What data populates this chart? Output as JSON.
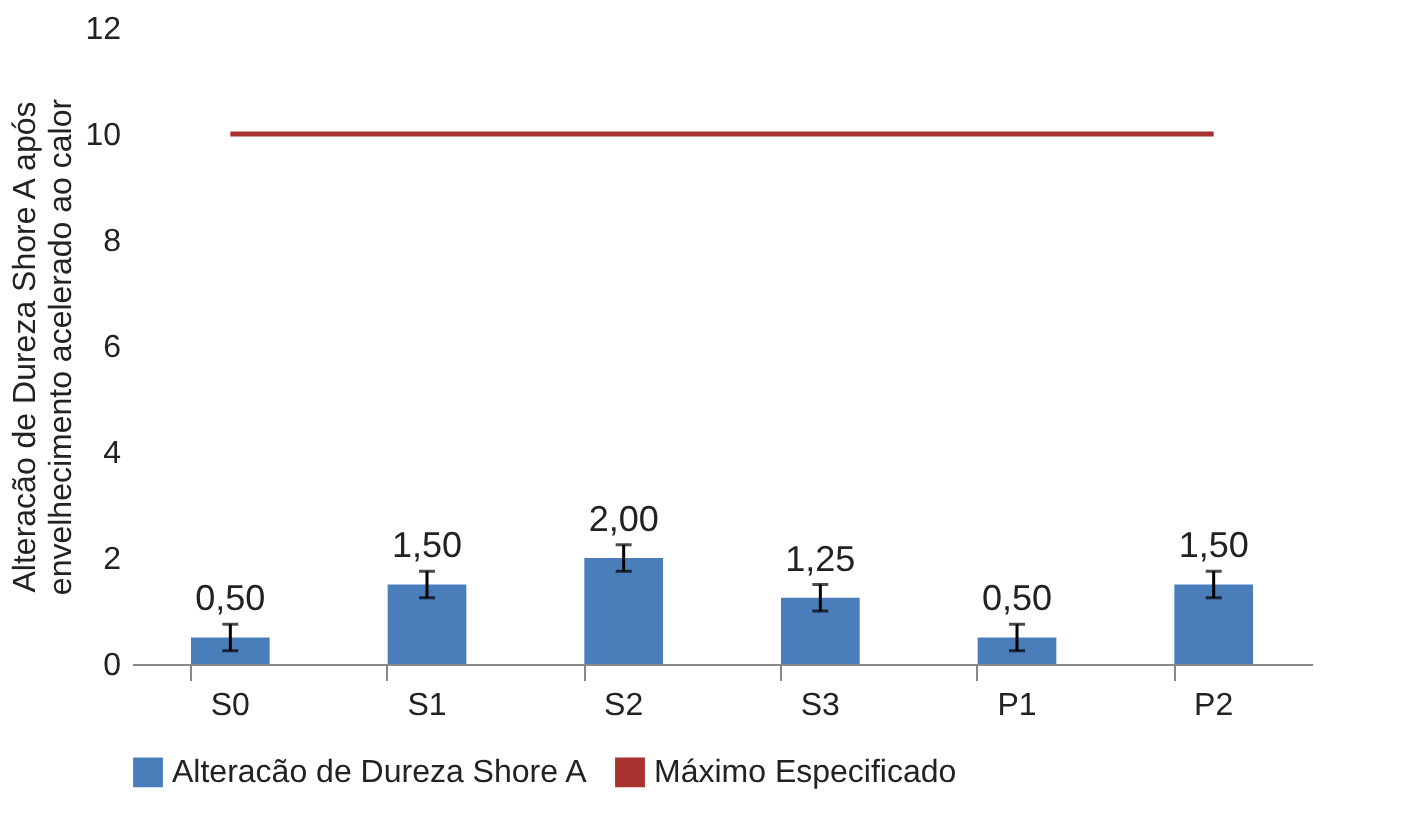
{
  "chart_data": {
    "type": "bar",
    "ylabel": "Alteracão de Dureza Shore A após envelhecimento acelerado  ao calor",
    "categories": [
      "S0",
      "S1",
      "S2",
      "S3",
      "P1",
      "P2"
    ],
    "series": [
      {
        "name": "Alteracão de Dureza Shore A",
        "color": "#4a7ebb",
        "values": [
          0.5,
          1.5,
          2.0,
          1.25,
          0.5,
          1.5
        ],
        "errors": [
          0.25,
          0.25,
          0.25,
          0.25,
          0.25,
          0.25
        ],
        "value_labels": [
          "0,50",
          "1,50",
          "2,00",
          "1,25",
          "0,50",
          "1,50"
        ]
      },
      {
        "type": "line",
        "name": "Máximo Especificado",
        "color": "#a8322d",
        "values": [
          10,
          10,
          10,
          10,
          10,
          10
        ]
      }
    ],
    "ylim": [
      0,
      12
    ],
    "yticks": [
      0,
      2,
      4,
      6,
      8,
      10,
      12
    ],
    "grid": false,
    "legend": "bottom"
  }
}
